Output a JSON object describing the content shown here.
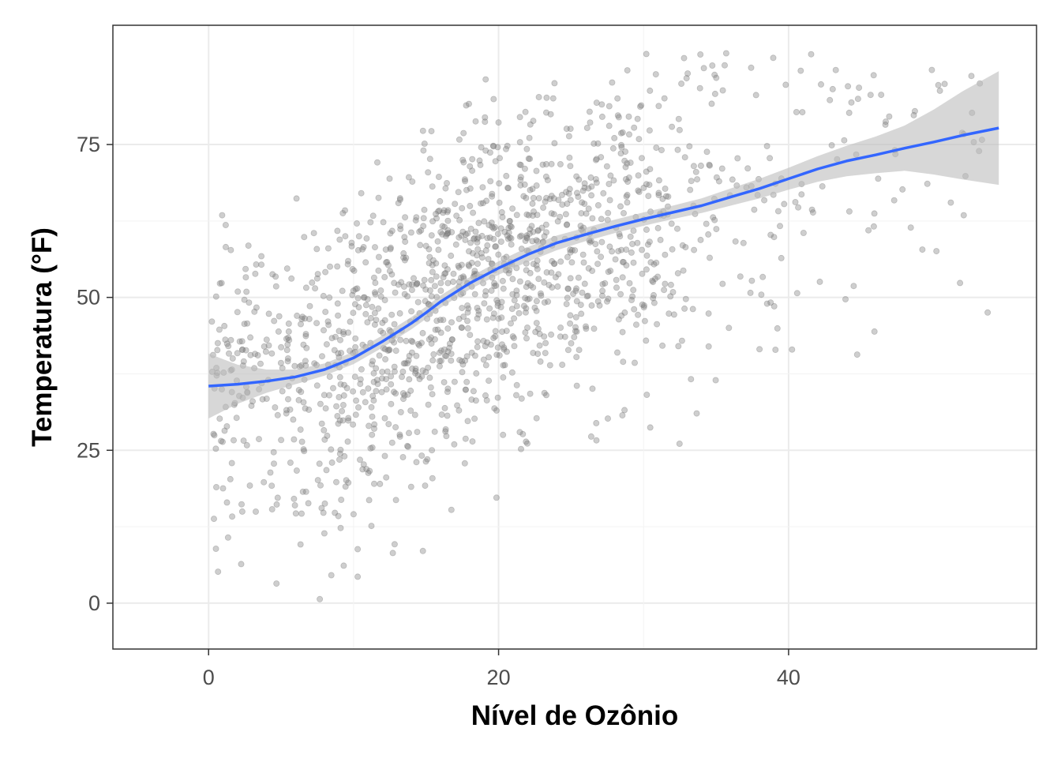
{
  "chart_data": {
    "type": "scatter",
    "title": "",
    "xlabel": "Nível de Ozônio",
    "ylabel": "Temperatura (°F)",
    "xlim": [
      -6.6,
      57.1
    ],
    "ylim": [
      -7.5,
      94.5
    ],
    "x_ticks": [
      0,
      20,
      40
    ],
    "x_tick_labels": [
      "0",
      "20",
      "40"
    ],
    "y_ticks": [
      0,
      25,
      50,
      75
    ],
    "y_tick_labels": [
      "0",
      "25",
      "50",
      "75"
    ],
    "grid": true,
    "legend": "none",
    "colors": {
      "points": "#7f7f7f",
      "smooth_line": "#3366ff",
      "ribbon": "#bdbdbd",
      "panel_border": "#333333",
      "grid": "#ebebeb"
    },
    "points_summary": "approx. 1,500 semi-transparent grey points; ozone ~0-55, temperature ~-3 to 90, positively related",
    "smooth": {
      "method": "loess",
      "x": [
        0,
        2,
        4,
        6,
        8,
        10,
        12,
        14,
        15,
        16,
        18,
        20,
        22,
        24,
        26,
        28,
        30,
        32,
        34,
        36,
        38,
        40,
        42,
        44,
        46,
        48,
        50,
        52,
        54.5
      ],
      "y": [
        35.5,
        35.8,
        36.3,
        37.0,
        38.2,
        40.1,
        42.8,
        45.8,
        47.5,
        49.3,
        52.3,
        54.8,
        57.0,
        58.9,
        60.3,
        61.6,
        62.8,
        63.9,
        65.0,
        66.4,
        67.8,
        69.4,
        71.0,
        72.3,
        73.3,
        74.4,
        75.4,
        76.5,
        77.7
      ],
      "lower": [
        30.2,
        32.6,
        34.4,
        35.8,
        37.2,
        39.1,
        41.8,
        44.8,
        46.5,
        48.3,
        51.3,
        53.7,
        55.8,
        57.7,
        59.2,
        60.5,
        61.7,
        62.8,
        63.8,
        65.0,
        66.2,
        67.6,
        68.9,
        69.8,
        70.3,
        70.7,
        70.1,
        69.3,
        68.4
      ],
      "upper": [
        40.8,
        39.0,
        38.2,
        38.2,
        39.2,
        41.1,
        43.8,
        46.8,
        48.5,
        50.3,
        53.3,
        55.9,
        58.2,
        60.1,
        61.4,
        62.7,
        63.9,
        65.0,
        66.2,
        67.8,
        69.4,
        71.2,
        73.1,
        74.8,
        76.3,
        78.1,
        80.7,
        83.7,
        87.0
      ]
    }
  }
}
